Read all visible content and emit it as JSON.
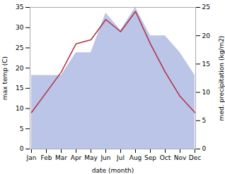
{
  "chart_data": {
    "type": "line",
    "categories": [
      "Jan",
      "Feb",
      "Mar",
      "Apr",
      "May",
      "Jun",
      "Jul",
      "Aug",
      "Sep",
      "Oct",
      "Nov",
      "Dec"
    ],
    "series": [
      {
        "type": "area",
        "axis": "y2",
        "color": "#bbc5e8",
        "values": [
          13,
          13,
          13,
          17,
          17,
          24,
          21,
          25,
          20,
          20,
          17,
          13
        ]
      },
      {
        "type": "line",
        "color": "#b03040",
        "values": [
          9,
          14,
          19,
          26,
          27,
          32,
          29,
          34,
          26,
          19,
          13,
          9
        ]
      }
    ],
    "xlabel": "date (month)",
    "ylabel": "max temp (C)",
    "y2label": "med. precipitation (kg/m2)",
    "ylim": [
      0,
      35
    ],
    "yticks": [
      0,
      5,
      10,
      15,
      20,
      25,
      30,
      35
    ],
    "y2lim": [
      0,
      25
    ],
    "y2ticks": [
      0,
      5,
      10,
      15,
      20,
      25
    ],
    "grid": false
  }
}
